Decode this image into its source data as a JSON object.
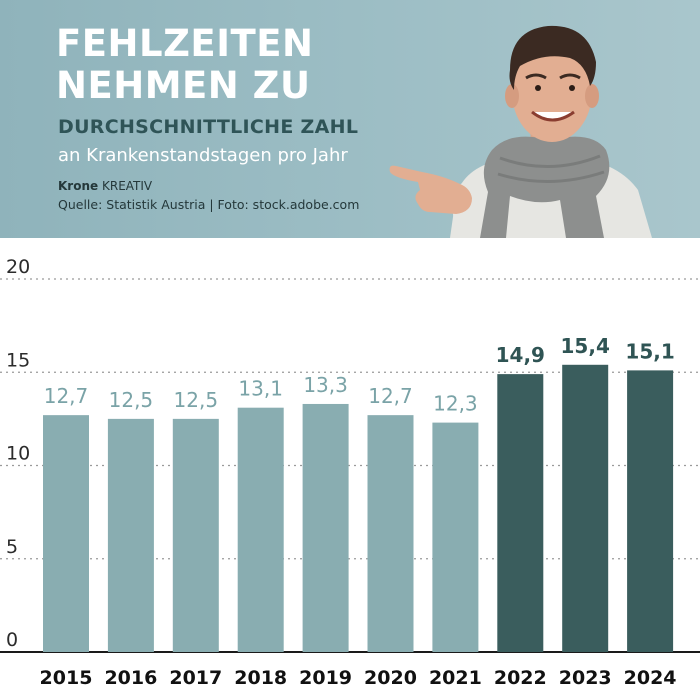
{
  "header": {
    "title_line1": "FEHLZEITEN",
    "title_line2": "NEHMEN ZU",
    "subtitle_line1": "DURCHSCHNITTLICHE ZAHL",
    "subtitle_line2": "an Krankenstandstagen pro Jahr",
    "credit_brand": "Krone",
    "credit_label": "KREATIV",
    "source": "Quelle: Statistik Austria | Foto: stock.adobe.com"
  },
  "colors": {
    "header_bg": "#9dbec5",
    "bar_light": "#89adb1",
    "bar_dark": "#3a5d5d",
    "label_light": "#7aa3a7",
    "label_dark": "#2f5454"
  },
  "chart_data": {
    "type": "bar",
    "categories": [
      "2015",
      "2016",
      "2017",
      "2018",
      "2019",
      "2020",
      "2021",
      "2022",
      "2023",
      "2024"
    ],
    "values": [
      12.7,
      12.5,
      12.5,
      13.1,
      13.3,
      12.7,
      12.3,
      14.9,
      15.4,
      15.1
    ],
    "value_labels": [
      "12,7",
      "12,5",
      "12,5",
      "13,1",
      "13,3",
      "12,7",
      "12,3",
      "14,9",
      "15,4",
      "15,1"
    ],
    "highlight": [
      false,
      false,
      false,
      false,
      false,
      false,
      false,
      true,
      true,
      true
    ],
    "ylim": [
      0,
      20
    ],
    "yticks": [
      0,
      5,
      10,
      15,
      20
    ],
    "grid": true
  }
}
